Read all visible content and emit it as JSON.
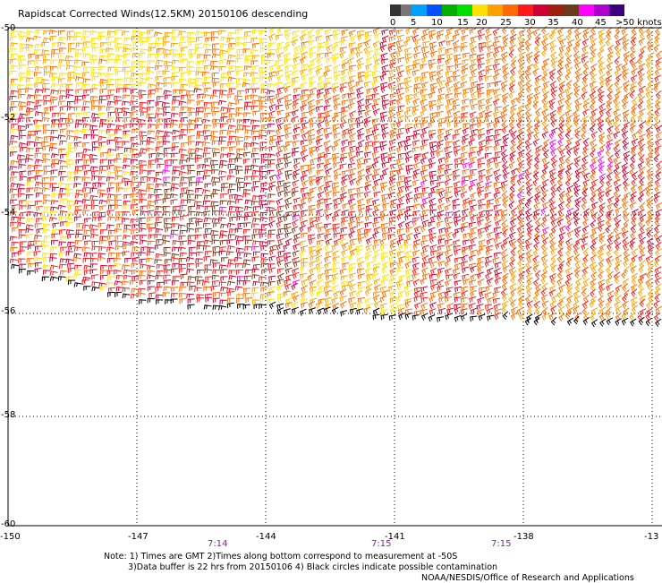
{
  "title": "Rapidscat Corrected Winds(12.5KM) 20150106 descending",
  "legend": {
    "colors": [
      "#333333",
      "#777777",
      "#00a0ff",
      "#0050ff",
      "#00b000",
      "#00e000",
      "#ffe000",
      "#ffa000",
      "#ff6a00",
      "#ff1a1a",
      "#d00030",
      "#a02010",
      "#6b3a1f",
      "#ff00ff",
      "#b000d0",
      "#3a0080"
    ],
    "labels": [
      "0",
      "5",
      "10",
      "15",
      "20",
      "25",
      "30",
      "35",
      "40",
      "45",
      ">50 knots"
    ]
  },
  "axes": {
    "x_labels": [
      "-150",
      "-147",
      "-144",
      "-141",
      "-138",
      "-13"
    ],
    "y_labels": [
      "-50",
      "-52",
      "-54",
      "-56",
      "-58",
      "-60"
    ]
  },
  "times": [
    "7:14",
    "7:15",
    "7:15"
  ],
  "notes": [
    "Note: 1) Times are GMT 2)Times along bottom correspond to measurement at -50S",
    "3)Data buffer is 22 hrs from 20150106 4) Black circles indicate possible contamination",
    "NOAA/NESDIS/Office of Research and Applications"
  ]
}
